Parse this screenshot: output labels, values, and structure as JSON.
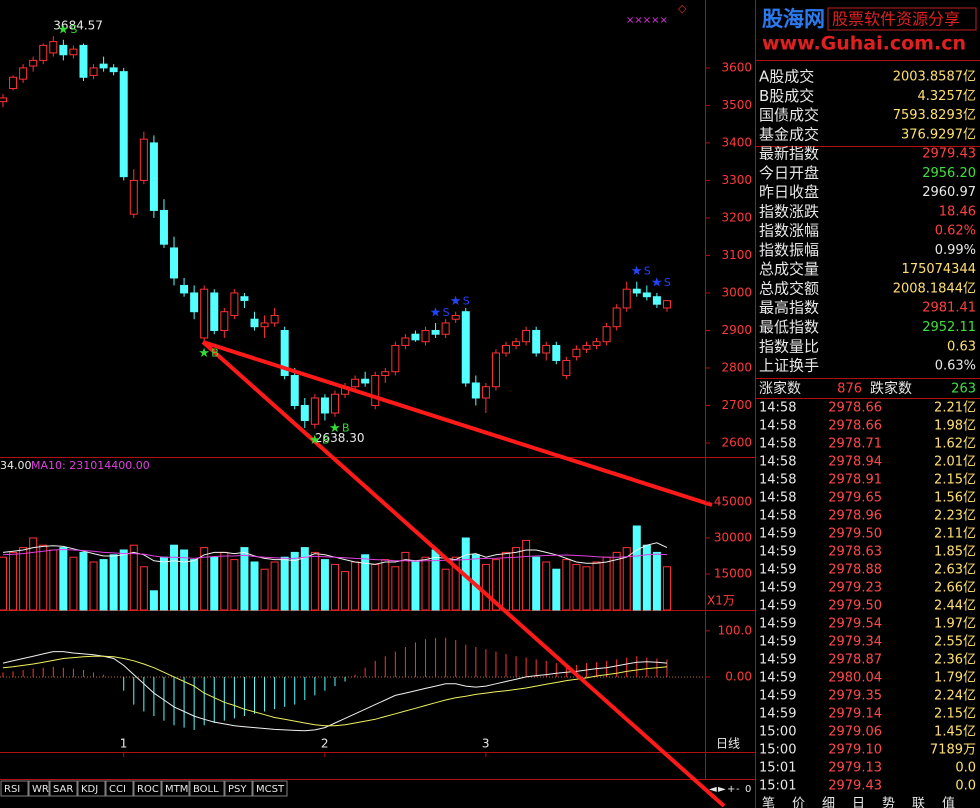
{
  "logo": {
    "name": "股海网",
    "slogan": "股票软件资源分享",
    "url": "www.Guhai.com.cn"
  },
  "corner_marks": "×××××",
  "corner_icon": "◇",
  "price_chart": {
    "type": "candlestick",
    "up_color": "#ff3232",
    "down_color": "#54ffff",
    "open": [
      3510,
      3545,
      3570,
      3605,
      3620,
      3640,
      3660,
      3635,
      3660,
      3580,
      3610,
      3600,
      3590,
      3210,
      3300,
      3400,
      3220,
      3120,
      3020,
      3000,
      2880,
      3000,
      2900,
      2940,
      2990,
      2930,
      2910,
      2920,
      2900,
      2780,
      2700,
      2650,
      2720,
      2680,
      2730,
      2750,
      2770,
      2700,
      2780,
      2790,
      2860,
      2890,
      2870,
      2900,
      2890,
      2930,
      2950,
      2760,
      2720,
      2750,
      2840,
      2860,
      2870,
      2900,
      2840,
      2860,
      2780,
      2830,
      2850,
      2860,
      2870,
      2910,
      2960,
      3010,
      3000,
      2990,
      2960
    ],
    "high": [
      3530,
      3580,
      3610,
      3630,
      3665,
      3684.57,
      3675,
      3660,
      3665,
      3610,
      3630,
      3610,
      3600,
      3330,
      3430,
      3420,
      3250,
      3150,
      3040,
      3020,
      3020,
      3010,
      2960,
      3010,
      3000,
      2950,
      2940,
      2960,
      2910,
      2800,
      2720,
      2730,
      2730,
      2740,
      2760,
      2780,
      2790,
      2790,
      2800,
      2870,
      2890,
      2900,
      2910,
      2920,
      2930,
      2950,
      2960,
      2780,
      2760,
      2850,
      2870,
      2880,
      2910,
      2910,
      2870,
      2870,
      2830,
      2860,
      2870,
      2880,
      2920,
      2970,
      3030,
      3030,
      3020,
      3000,
      2980
    ],
    "low": [
      3495,
      3540,
      3560,
      3590,
      3610,
      3630,
      3620,
      3625,
      3565,
      3570,
      3590,
      3580,
      3300,
      3200,
      3290,
      3200,
      3120,
      3020,
      2990,
      2930,
      2870,
      2890,
      2880,
      2930,
      2960,
      2900,
      2880,
      2910,
      2770,
      2690,
      2640,
      2638.3,
      2660,
      2670,
      2720,
      2740,
      2750,
      2690,
      2760,
      2780,
      2850,
      2870,
      2860,
      2880,
      2880,
      2920,
      2750,
      2700,
      2680,
      2740,
      2830,
      2850,
      2860,
      2830,
      2820,
      2810,
      2770,
      2820,
      2840,
      2850,
      2860,
      2900,
      2950,
      2990,
      2980,
      2960,
      2950
    ],
    "close": [
      3520,
      3575,
      3600,
      3620,
      3660,
      3670,
      3635,
      3650,
      3575,
      3600,
      3600,
      3590,
      3310,
      3300,
      3410,
      3220,
      3130,
      3040,
      3000,
      2950,
      3010,
      2900,
      2950,
      3000,
      2980,
      2910,
      2920,
      2940,
      2780,
      2700,
      2660,
      2720,
      2680,
      2730,
      2750,
      2770,
      2760,
      2780,
      2790,
      2860,
      2880,
      2875,
      2900,
      2890,
      2920,
      2940,
      2760,
      2720,
      2750,
      2840,
      2860,
      2870,
      2900,
      2840,
      2860,
      2820,
      2820,
      2850,
      2860,
      2870,
      2910,
      2960,
      3010,
      3000,
      2990,
      2970,
      2979.43
    ],
    "ylim": [
      2568,
      3781
    ],
    "yticks": [
      3600,
      3500,
      3400,
      3300,
      3200,
      3100,
      3000,
      2900,
      2800,
      2700,
      2600
    ],
    "annotations": [
      {
        "index": 5,
        "value": 3684.57,
        "label": "3684.57"
      },
      {
        "index": 31,
        "value": 2638.3,
        "label": "2638.30"
      }
    ],
    "signals": [
      {
        "index": 6,
        "label": "S",
        "color": "#33dd33"
      },
      {
        "index": 20,
        "label": "B",
        "color": "#33dd33"
      },
      {
        "index": 31,
        "label": "B",
        "color": "#33dd33"
      },
      {
        "index": 33,
        "label": "B",
        "color": "#33dd33"
      },
      {
        "index": 43,
        "label": "S",
        "color": "#2244ff"
      },
      {
        "index": 45,
        "label": "S",
        "color": "#2244ff"
      },
      {
        "index": 63,
        "label": "S",
        "color": "#2244ff"
      },
      {
        "index": 65,
        "label": "S",
        "color": "#2244ff"
      }
    ],
    "x_labels": [
      {
        "index": 12,
        "label": "1"
      },
      {
        "index": 32,
        "label": "2"
      },
      {
        "index": 48,
        "label": "3"
      }
    ],
    "period": "日线"
  },
  "volume_chart": {
    "type": "bar",
    "header": [
      "34.00",
      "MA10: 231014400.00"
    ],
    "unit": "X1万",
    "values": [
      22000,
      24000,
      26000,
      30000,
      27000,
      25000,
      26000,
      22000,
      24000,
      20000,
      21000,
      23000,
      25000,
      27000,
      18000,
      8000,
      22000,
      27000,
      25000,
      21000,
      26000,
      22000,
      24000,
      21000,
      26000,
      20000,
      17000,
      20000,
      22000,
      24000,
      26000,
      24000,
      21000,
      19000,
      16000,
      20000,
      23000,
      19000,
      21000,
      18000,
      24000,
      20000,
      22000,
      25000,
      17000,
      22000,
      30000,
      23000,
      19000,
      21000,
      24000,
      26000,
      29000,
      22000,
      20000,
      17000,
      21000,
      19000,
      18000,
      20000,
      22000,
      24000,
      26000,
      35000,
      27000,
      24000,
      18000
    ],
    "ma5": [
      24000,
      24500,
      25000,
      26000,
      26500,
      26800,
      26500,
      25500,
      24500,
      23500,
      22500,
      22500,
      23000,
      24000,
      23000,
      20500,
      20000,
      20500,
      20000,
      20600,
      23000,
      24000,
      24000,
      23500,
      24000,
      22500,
      21500,
      21000,
      21000,
      20600,
      21800,
      23500,
      23000,
      22000,
      21000,
      20000,
      19500,
      19000,
      20000,
      20000,
      21000,
      20500,
      21000,
      22000,
      21500,
      21000,
      23000,
      23500,
      22000,
      23000,
      23500,
      24000,
      25000,
      25000,
      24000,
      23000,
      21500,
      20000,
      19500,
      19500,
      20000,
      21000,
      22000,
      25000,
      27000,
      28000,
      26000
    ],
    "ma10": [
      23000,
      23200,
      23500,
      24000,
      24500,
      25000,
      25200,
      25000,
      24800,
      24500,
      24000,
      23800,
      23500,
      23500,
      23300,
      22500,
      22000,
      22000,
      21800,
      21500,
      22000,
      22300,
      22500,
      22500,
      22800,
      22300,
      22000,
      21800,
      21600,
      21500,
      22000,
      22400,
      22200,
      22000,
      21800,
      21500,
      21300,
      21000,
      20800,
      20500,
      20500,
      20300,
      20500,
      20600,
      20700,
      20800,
      21000,
      21300,
      21500,
      21600,
      21800,
      22000,
      22300,
      22500,
      22700,
      22800,
      22900,
      22700,
      22500,
      22200,
      22000,
      22000,
      22200,
      22500,
      23000,
      23300,
      23100
    ],
    "ylim": [
      0,
      62500
    ],
    "yticks": [
      45000,
      30000,
      15000
    ]
  },
  "macd_chart": {
    "type": "macd",
    "hist": [
      10,
      12,
      15,
      18,
      20,
      22,
      20,
      18,
      15,
      10,
      5,
      0,
      -30,
      -60,
      -75,
      -85,
      -95,
      -105,
      -110,
      -115,
      -105,
      -100,
      -95,
      -90,
      -85,
      -80,
      -75,
      -70,
      -65,
      -60,
      -50,
      -40,
      -30,
      -20,
      -10,
      5,
      20,
      35,
      45,
      55,
      65,
      75,
      82,
      85,
      85,
      80,
      70,
      65,
      60,
      55,
      50,
      45,
      42,
      38,
      35,
      30,
      28,
      26,
      30,
      32,
      35,
      38,
      42,
      45,
      42,
      40,
      38
    ],
    "dif": [
      30,
      35,
      40,
      45,
      50,
      55,
      55,
      52,
      50,
      48,
      45,
      40,
      25,
      5,
      -15,
      -35,
      -50,
      -65,
      -75,
      -85,
      -92,
      -98,
      -102,
      -106,
      -108,
      -110,
      -112,
      -114,
      -115,
      -116,
      -117,
      -115,
      -110,
      -100,
      -90,
      -80,
      -70,
      -60,
      -50,
      -40,
      -35,
      -30,
      -25,
      -20,
      -15,
      -15,
      -20,
      -22,
      -20,
      -15,
      -10,
      -5,
      0,
      3,
      5,
      8,
      10,
      12,
      15,
      18,
      20,
      24,
      28,
      32,
      33,
      32,
      30
    ],
    "dea": [
      20,
      22,
      25,
      28,
      32,
      36,
      40,
      42,
      44,
      45,
      45,
      44,
      40,
      35,
      28,
      20,
      10,
      0,
      -10,
      -20,
      -35,
      -45,
      -55,
      -62,
      -70,
      -76,
      -82,
      -88,
      -92,
      -96,
      -100,
      -104,
      -106,
      -106,
      -104,
      -100,
      -96,
      -92,
      -86,
      -80,
      -74,
      -68,
      -62,
      -56,
      -50,
      -45,
      -42,
      -38,
      -35,
      -32,
      -30,
      -27,
      -24,
      -20,
      -16,
      -12,
      -8,
      -5,
      -2,
      2,
      5,
      8,
      12,
      15,
      18,
      20,
      22
    ],
    "ylim": [
      -163,
      141
    ],
    "yticks": [
      {
        "value": 100,
        "label": "100.0"
      },
      {
        "value": 0,
        "label": "0.00"
      }
    ]
  },
  "quote_panel": {
    "rows": [
      {
        "label": "A股成交",
        "value": "2003.8587亿",
        "color": "#ffe070"
      },
      {
        "label": "B股成交",
        "value": "4.3257亿",
        "color": "#ffe070"
      },
      {
        "label": "国债成交",
        "value": "7593.8293亿",
        "color": "#ffe070"
      },
      {
        "label": "基金成交",
        "value": "376.9297亿",
        "color": "#ffe070"
      },
      {
        "label": "最新指数",
        "value": "2979.43",
        "color": "#ff4040"
      },
      {
        "label": "今日开盘",
        "value": "2956.20",
        "color": "#40e040"
      },
      {
        "label": "昨日收盘",
        "value": "2960.97",
        "color": "#e8e8e8"
      },
      {
        "label": "指数涨跌",
        "value": "18.46",
        "color": "#ff4040"
      },
      {
        "label": "指数涨幅",
        "value": "0.62%",
        "color": "#ff4040"
      },
      {
        "label": "指数振幅",
        "value": "0.99%",
        "color": "#e8e8e8"
      },
      {
        "label": "总成交量",
        "value": "175074344",
        "color": "#ffe070"
      },
      {
        "label": "总成交额",
        "value": "2008.1844亿",
        "color": "#ffe070"
      },
      {
        "label": "最高指数",
        "value": "2981.41",
        "color": "#ff4040"
      },
      {
        "label": "最低指数",
        "value": "2952.11",
        "color": "#40e040"
      },
      {
        "label": "指数量比",
        "value": "0.63",
        "color": "#ffe070"
      },
      {
        "label": "上证换手",
        "value": "0.63%",
        "color": "#e8e8e8"
      }
    ]
  },
  "breadth": {
    "up_label": "涨家数",
    "up": 876,
    "down_label": "跌家数",
    "down": 263
  },
  "ticks": {
    "rows": [
      [
        "14:58",
        "2978.66",
        "2.21亿"
      ],
      [
        "14:58",
        "2978.66",
        "1.98亿"
      ],
      [
        "14:58",
        "2978.71",
        "1.62亿"
      ],
      [
        "14:58",
        "2978.94",
        "2.01亿"
      ],
      [
        "14:58",
        "2978.91",
        "2.15亿"
      ],
      [
        "14:58",
        "2979.65",
        "1.56亿"
      ],
      [
        "14:58",
        "2978.96",
        "2.23亿"
      ],
      [
        "14:59",
        "2979.50",
        "2.11亿"
      ],
      [
        "14:59",
        "2978.63",
        "1.85亿"
      ],
      [
        "14:59",
        "2978.88",
        "2.63亿"
      ],
      [
        "14:59",
        "2979.23",
        "2.66亿"
      ],
      [
        "14:59",
        "2979.50",
        "2.44亿"
      ],
      [
        "14:59",
        "2979.54",
        "1.97亿"
      ],
      [
        "14:59",
        "2979.34",
        "2.55亿"
      ],
      [
        "14:59",
        "2978.87",
        "2.36亿"
      ],
      [
        "14:59",
        "2980.04",
        "1.79亿"
      ],
      [
        "14:59",
        "2979.35",
        "2.24亿"
      ],
      [
        "14:59",
        "2979.14",
        "2.15亿"
      ],
      [
        "15:00",
        "2979.06",
        "1.45亿"
      ],
      [
        "15:00",
        "2979.10",
        "7189万"
      ],
      [
        "15:01",
        "2979.13",
        "0.0"
      ],
      [
        "15:01",
        "2979.43",
        "0.0"
      ]
    ]
  },
  "toolbar": {
    "tabs": [
      "RSI",
      "WR",
      "SAR",
      "KDJ",
      "CCI",
      "ROC",
      "MTM",
      "BOLL",
      "PSY",
      "MCST"
    ],
    "nav": [
      "◄",
      "►",
      "+",
      "-",
      "0"
    ],
    "right_tabs": [
      "笔",
      "价",
      "细",
      "日",
      "势",
      "联",
      "值"
    ]
  }
}
